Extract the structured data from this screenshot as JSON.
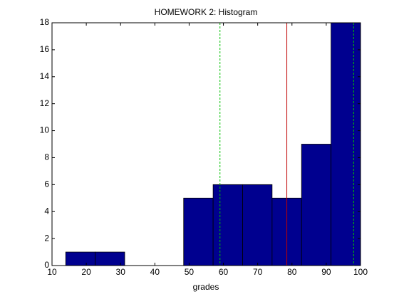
{
  "chart_data": {
    "type": "histogram",
    "title": "HOMEWORK 2: Histogram",
    "x_label": "grades",
    "bins": [
      14,
      22.6,
      31.2,
      39.8,
      48.4,
      57,
      65.6,
      74.2,
      82.8,
      91.4,
      100
    ],
    "values": [
      1,
      1,
      0,
      0,
      5,
      6,
      6,
      5,
      9,
      18
    ],
    "color": "#00008f",
    "edgecolor": "#000000",
    "xlim": [
      10,
      100
    ],
    "xticks": [
      10,
      20,
      30,
      40,
      50,
      60,
      70,
      80,
      90,
      100
    ],
    "ylim": [
      0,
      18
    ],
    "yticks": [
      0,
      2,
      4,
      6,
      8,
      10,
      12,
      14,
      16,
      18
    ],
    "vlines": [
      {
        "value": 59,
        "color": "#00c000",
        "style": "dashed"
      },
      {
        "value": 78.5,
        "color": "#c00000",
        "style": "solid"
      },
      {
        "value": 98,
        "color": "#00c000",
        "style": "dashed"
      }
    ]
  }
}
